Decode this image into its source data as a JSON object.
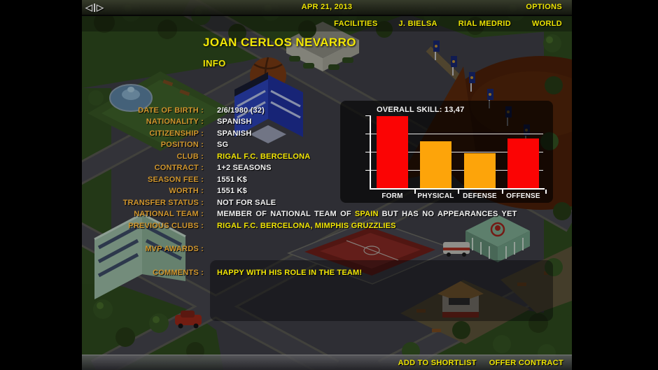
{
  "top_bar": {
    "date": "APR 21, 2013",
    "options_label": "OPTIONS",
    "icons": {
      "prev_glyph": "◁",
      "next_glyph": "▷"
    }
  },
  "menu": {
    "items": [
      {
        "label": "FACILITIES"
      },
      {
        "label": "J. BIELSA"
      },
      {
        "label": "RIAL MEDRID"
      },
      {
        "label": "WORLD"
      }
    ]
  },
  "player": {
    "name": "JOAN CERLOS NEVARRO",
    "tab": "INFO"
  },
  "info": {
    "rows": [
      {
        "label": "DATE OF BIRTH :",
        "value": "2/6/1980 (32)"
      },
      {
        "label": "NATIONALITY :",
        "value": "SPANISH"
      },
      {
        "label": "CITIZENSHIP :",
        "value": "SPANISH"
      },
      {
        "label": "POSITION :",
        "value": "SG"
      },
      {
        "label": "CLUB :",
        "value": "RIGAL F.C. BERCELONA"
      },
      {
        "label": "CONTRACT :",
        "value": "1+2 SEASONS"
      },
      {
        "label": "SEASON FEE :",
        "value": "1551 K$"
      },
      {
        "label": "WORTH :",
        "value": "1551 K$"
      },
      {
        "label": "TRANSFER STATUS :",
        "value": "NOT FOR SALE"
      },
      {
        "label": "NATIONAL TEAM :",
        "value_pre": "MEMBER OF NATIONAL TEAM OF",
        "value_accent": "SPAIN",
        "value_post": "BUT HAS NO APPEARANCES YET"
      },
      {
        "label": "PREVIOUS CLUBS :",
        "value": "RIGAL F.C. BERCELONA, MIMPHIS GRUZZLIES"
      }
    ],
    "mvp_label": "MVP AWARDS :",
    "comments_label": "COMMENTS :",
    "comments_value": "HAPPY WITH HIS ROLE IN THE TEAM!"
  },
  "chart_data": {
    "type": "bar",
    "title": "OVERALL SKILL: 13,47",
    "categories": [
      "FORM",
      "PHYSICAL",
      "DEFENSE",
      "OFFENSE"
    ],
    "values": [
      19.8,
      12.8,
      9.7,
      13.7
    ],
    "bar_colors": [
      "#fb0404",
      "#fda40a",
      "#fda40a",
      "#fb0404"
    ],
    "ylim": [
      0,
      20
    ],
    "grid_values": [
      5,
      10,
      15
    ],
    "grid": true,
    "legend": false,
    "xlabel": "",
    "ylabel": ""
  },
  "bottom_bar": {
    "add_to_shortlist": "ADD TO SHORTLIST",
    "offer_contract": "OFFER CONTRACT"
  },
  "colors": {
    "accent_yellow": "#ece303",
    "label_orange": "#d0962e",
    "value_white": "#f2f2f2",
    "bar_red": "#fb0404",
    "bar_orange": "#fda40a"
  }
}
